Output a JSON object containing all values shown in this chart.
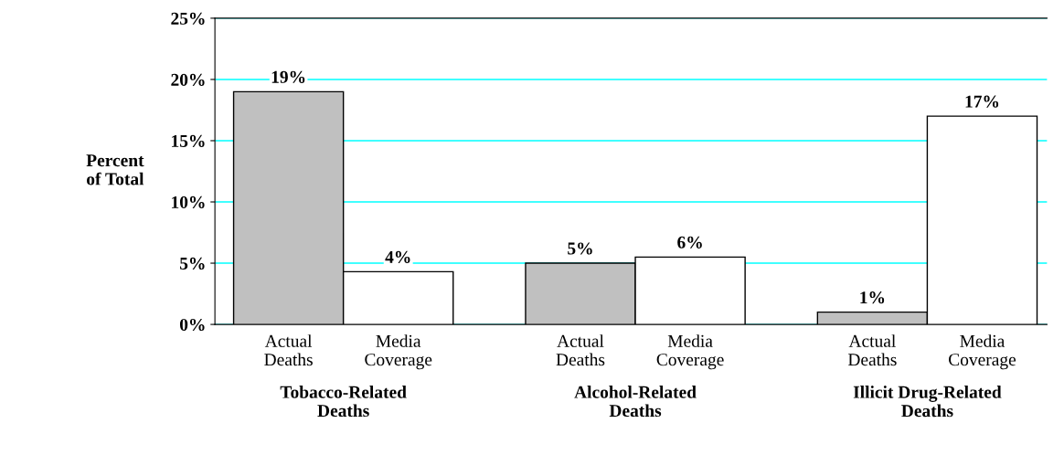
{
  "chart_data": {
    "type": "bar",
    "ylabel": "Percent\nof Total",
    "categories": [
      "Tobacco-Related\nDeaths",
      "Alcohol-Related\nDeaths",
      "Illicit Drug-Related\nDeaths"
    ],
    "series": [
      {
        "name": "Actual\nDeaths",
        "color": "#c0c0c0",
        "values": [
          19,
          5,
          1
        ],
        "value_labels": [
          "19%",
          "5%",
          "1%"
        ]
      },
      {
        "name": "Media\nCoverage",
        "color": "#ffffff",
        "values": [
          4.3,
          5.5,
          17
        ],
        "value_labels": [
          "4%",
          "6%",
          "17%"
        ]
      }
    ],
    "ylim": [
      0,
      25
    ],
    "yticks": [
      {
        "value": 0,
        "label": "0%"
      },
      {
        "value": 5,
        "label": "5%"
      },
      {
        "value": 10,
        "label": "10%"
      },
      {
        "value": 15,
        "label": "15%"
      },
      {
        "value": 20,
        "label": "20%"
      },
      {
        "value": 25,
        "label": "25%"
      }
    ],
    "grid": "y",
    "legend": false
  }
}
